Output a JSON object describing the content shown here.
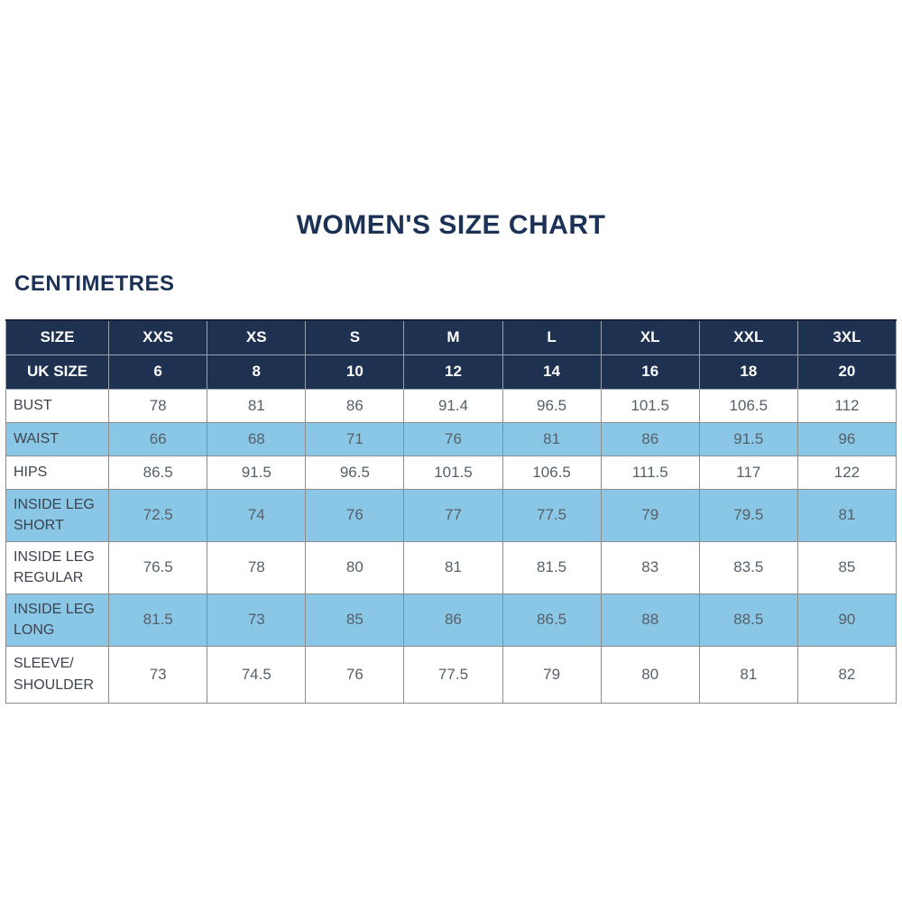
{
  "title": "WOMEN'S SIZE CHART",
  "unit_label": "CENTIMETRES",
  "colors": {
    "header_bg": "#1F3150",
    "header_text": "#FFFFFF",
    "alt_row_bg": "#8AC6E6",
    "row_bg": "#FFFFFF",
    "grid_line": "#8C8C8C",
    "title_text": "#1C3156",
    "label_text": "#3D434D",
    "value_text": "#566069"
  },
  "chart_data": {
    "type": "table",
    "title": "WOMEN'S SIZE CHART",
    "unit": "CENTIMETRES",
    "header_rows": [
      {
        "label": "SIZE",
        "values": [
          "XXS",
          "XS",
          "S",
          "M",
          "L",
          "XL",
          "XXL",
          "3XL"
        ]
      },
      {
        "label": "UK SIZE",
        "values": [
          "6",
          "8",
          "10",
          "12",
          "14",
          "16",
          "18",
          "20"
        ]
      }
    ],
    "rows": [
      {
        "label": "BUST",
        "values": [
          "78",
          "81",
          "86",
          "91.4",
          "96.5",
          "101.5",
          "106.5",
          "112"
        ]
      },
      {
        "label": "WAIST",
        "values": [
          "66",
          "68",
          "71",
          "76",
          "81",
          "86",
          "91.5",
          "96"
        ]
      },
      {
        "label": "HIPS",
        "values": [
          "86.5",
          "91.5",
          "96.5",
          "101.5",
          "106.5",
          "111.5",
          "117",
          "122"
        ]
      },
      {
        "label": "INSIDE LEG SHORT",
        "values": [
          "72.5",
          "74",
          "76",
          "77",
          "77.5",
          "79",
          "79.5",
          "81"
        ]
      },
      {
        "label": "INSIDE LEG REGULAR",
        "values": [
          "76.5",
          "78",
          "80",
          "81",
          "81.5",
          "83",
          "83.5",
          "85"
        ]
      },
      {
        "label": "INSIDE LEG LONG",
        "values": [
          "81.5",
          "73",
          "85",
          "86",
          "86.5",
          "88",
          "88.5",
          "90"
        ]
      },
      {
        "label": "SLEEVE/ SHOULDER",
        "values": [
          "73",
          "74.5",
          "76",
          "77.5",
          "79",
          "80",
          "81",
          "82"
        ]
      }
    ]
  }
}
